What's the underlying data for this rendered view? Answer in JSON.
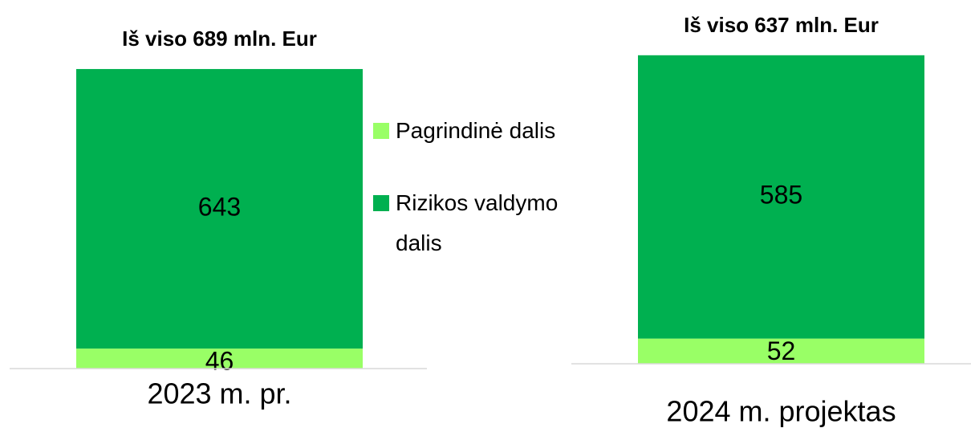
{
  "chart_data": [
    {
      "type": "bar",
      "stacked": true,
      "title": "Iš viso 689 mln. Eur",
      "categories": [
        "2023 m. pr."
      ],
      "series": [
        {
          "name": "Pagrindinė dalis",
          "color": "#99ff66",
          "values": [
            46
          ]
        },
        {
          "name": "Rizikos valdymo dalis",
          "color": "#00b050",
          "values": [
            643
          ]
        }
      ],
      "ylim": [
        0,
        700
      ],
      "legend": "right"
    },
    {
      "type": "bar",
      "stacked": true,
      "title": "Iš viso 637 mln. Eur",
      "categories": [
        "2024 m. projektas"
      ],
      "series": [
        {
          "color": "#99ff66",
          "values": [
            52
          ]
        },
        {
          "color": "#00b050",
          "values": [
            585
          ]
        }
      ],
      "ylim": [
        0,
        640
      ]
    }
  ]
}
